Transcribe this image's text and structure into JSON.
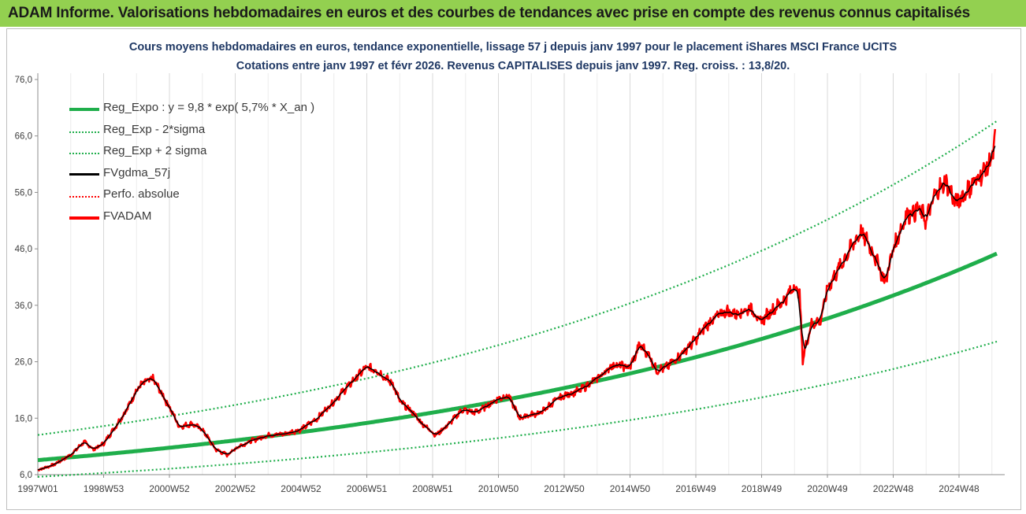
{
  "header": {
    "title": "ADAM Informe. Valorisations hebdomadaires en euros et des courbes de tendances avec prise en compte des revenus connus capitalisés"
  },
  "chart_data": {
    "type": "line",
    "title_line1": "Cours moyens hebdomadaires en euros, tendance exponentielle, lissage 57 j depuis janv 1997 pour le placement iShares MSCI France UCITS",
    "title_line2": "Cotations entre janv 1997 et févr 2026. Revenus CAPITALISES depuis janv 1997. Reg. croiss. : 13,8/20.",
    "xlabel": "",
    "ylabel": "",
    "x_range": [
      1997.0,
      2026.15
    ],
    "ylim": [
      6.0,
      80.0
    ],
    "y_ticks": [
      "6,0",
      "16,0",
      "26,0",
      "36,0",
      "46,0",
      "56,0",
      "66,0",
      "76,0"
    ],
    "y_tick_values": [
      6,
      16,
      26,
      36,
      46,
      56,
      66,
      76
    ],
    "x_ticks": [
      "1997W01",
      "1998W53",
      "2000W52",
      "2002W52",
      "2004W52",
      "2006W51",
      "2008W51",
      "2010W50",
      "2012W50",
      "2014W50",
      "2016W49",
      "2018W49",
      "2020W49",
      "2022W48",
      "2024W48"
    ],
    "x_tick_values": [
      1997.0,
      1999.0,
      2001.0,
      2003.0,
      2005.0,
      2007.0,
      2009.0,
      2011.0,
      2013.0,
      2015.0,
      2017.0,
      2019.0,
      2021.0,
      2023.0,
      2025.0
    ],
    "grid": "vertical",
    "legend_position": "top-left",
    "series": [
      {
        "name": "Reg_Expo : y = 9,8 * exp( 5,7% *  X_an )",
        "kind": "exp",
        "a": 9.8,
        "k": 0.057,
        "mult": 1.0,
        "color": "#1fae4b",
        "style": "solid-thick"
      },
      {
        "name": "Reg_Exp - 2*sigma",
        "kind": "exp",
        "a": 9.8,
        "k": 0.057,
        "mult": 0.655,
        "color": "#1fae4b",
        "style": "dotted"
      },
      {
        "name": "Reg_Exp + 2 sigma",
        "kind": "exp",
        "a": 9.8,
        "k": 0.057,
        "mult": 1.52,
        "color": "#1fae4b",
        "style": "dotted"
      },
      {
        "name": "FVgdma_57j",
        "kind": "smooth",
        "color": "#000000",
        "style": "solid"
      },
      {
        "name": "Perfo. absolue",
        "kind": "none",
        "color": "#ff0000",
        "style": "dotted"
      },
      {
        "name": "FVADAM",
        "kind": "price",
        "color": "#ff0000",
        "style": "solid-thick"
      }
    ],
    "price_keypoints": {
      "x": [
        1997.0,
        1997.5,
        1998.0,
        1998.4,
        1998.7,
        1999.0,
        1999.3,
        1999.7,
        2000.0,
        2000.2,
        2000.5,
        2000.8,
        2001.0,
        2001.3,
        2001.7,
        2002.0,
        2002.4,
        2002.75,
        2003.1,
        2003.5,
        2004.0,
        2004.5,
        2005.0,
        2005.5,
        2006.0,
        2006.4,
        2006.8,
        2007.0,
        2007.3,
        2007.5,
        2007.8,
        2008.0,
        2008.4,
        2008.6,
        2008.8,
        2009.1,
        2009.5,
        2009.9,
        2010.3,
        2010.6,
        2011.0,
        2011.3,
        2011.65,
        2011.9,
        2012.3,
        2012.7,
        2013.0,
        2013.5,
        2014.0,
        2014.5,
        2015.0,
        2015.3,
        2015.6,
        2015.8,
        2016.1,
        2016.5,
        2017.0,
        2017.4,
        2017.9,
        2018.2,
        2018.7,
        2018.95,
        2019.3,
        2019.7,
        2020.0,
        2020.15,
        2020.25,
        2020.5,
        2020.8,
        2021.0,
        2021.3,
        2021.7,
        2022.0,
        2022.2,
        2022.5,
        2022.75,
        2023.0,
        2023.4,
        2023.8,
        2024.0,
        2024.3,
        2024.6,
        2024.9,
        2025.2,
        2025.5,
        2025.8,
        2026.0,
        2026.1
      ],
      "y": [
        6.8,
        7.8,
        9.5,
        11.8,
        10.5,
        11.5,
        14.0,
        17.5,
        21.0,
        22.2,
        23.0,
        20.0,
        18.0,
        14.5,
        15.0,
        14.0,
        10.5,
        9.5,
        11.0,
        12.0,
        13.0,
        13.2,
        14.0,
        16.0,
        19.0,
        21.5,
        24.0,
        25.0,
        24.5,
        23.5,
        22.0,
        19.0,
        17.0,
        15.5,
        14.5,
        13.0,
        15.0,
        17.5,
        17.0,
        18.0,
        19.5,
        20.0,
        16.0,
        16.5,
        17.0,
        19.0,
        20.0,
        21.0,
        23.0,
        25.5,
        25.0,
        29.0,
        27.0,
        24.5,
        25.0,
        27.0,
        30.0,
        33.0,
        35.0,
        34.5,
        35.5,
        33.0,
        35.0,
        37.0,
        39.5,
        38.0,
        26.5,
        32.5,
        33.5,
        39.0,
        42.0,
        46.0,
        49.0,
        47.5,
        44.0,
        40.0,
        46.0,
        52.0,
        53.0,
        51.0,
        56.0,
        58.0,
        54.0,
        56.0,
        58.0,
        60.0,
        62.0,
        65.5
      ]
    }
  }
}
